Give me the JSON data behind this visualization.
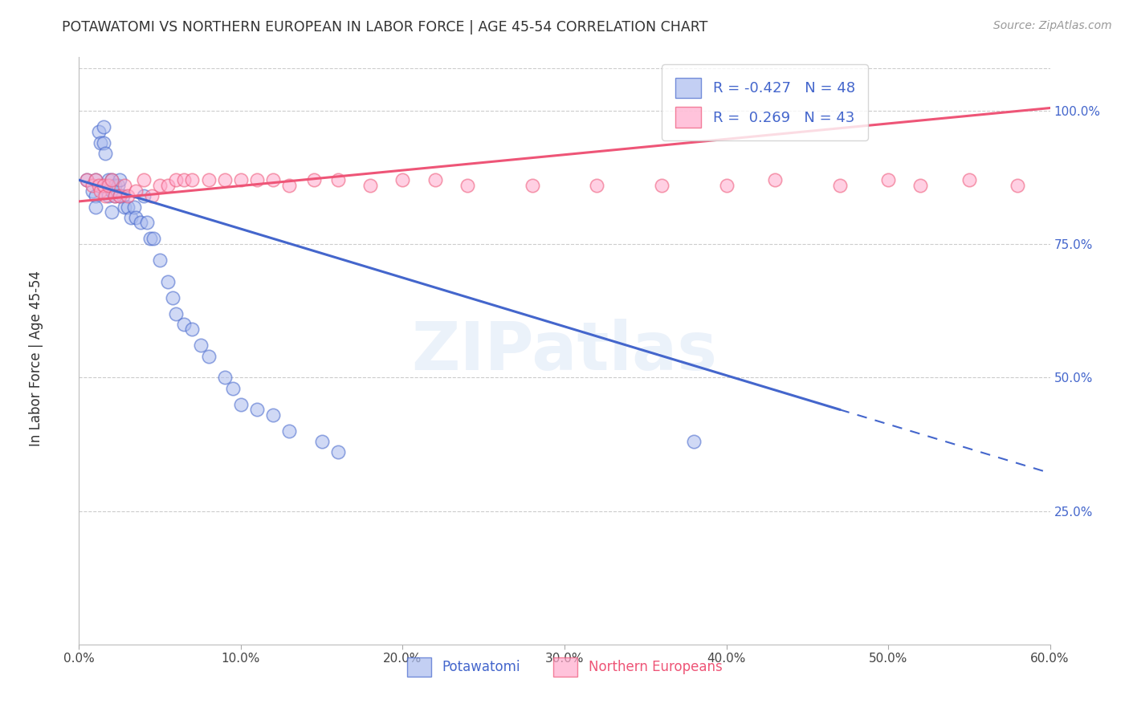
{
  "title": "POTAWATOMI VS NORTHERN EUROPEAN IN LABOR FORCE | AGE 45-54 CORRELATION CHART",
  "source": "Source: ZipAtlas.com",
  "ylabel": "In Labor Force | Age 45-54",
  "xlim": [
    0.0,
    0.6
  ],
  "ylim": [
    0.0,
    1.1
  ],
  "xticks": [
    0.0,
    0.1,
    0.2,
    0.3,
    0.4,
    0.5,
    0.6
  ],
  "xticklabels": [
    "0.0%",
    "10.0%",
    "20.0%",
    "30.0%",
    "40.0%",
    "50.0%",
    "60.0%"
  ],
  "yticks": [
    0.25,
    0.5,
    0.75,
    1.0
  ],
  "yticklabels": [
    "25.0%",
    "50.0%",
    "75.0%",
    "100.0%"
  ],
  "blue_fill": "#aabbee",
  "blue_edge": "#4466CC",
  "pink_fill": "#ffaacc",
  "pink_edge": "#ee5577",
  "blue_line": "#4466CC",
  "pink_line": "#ee5577",
  "blue_label": "Potawatomi",
  "pink_label": "Northern Europeans",
  "blue_r": "-0.427",
  "blue_n": "48",
  "pink_r": "0.269",
  "pink_n": "43",
  "watermark": "ZIPatlas",
  "blue_scatter_x": [
    0.005,
    0.008,
    0.01,
    0.01,
    0.01,
    0.012,
    0.013,
    0.015,
    0.015,
    0.016,
    0.018,
    0.018,
    0.02,
    0.02,
    0.02,
    0.022,
    0.022,
    0.024,
    0.025,
    0.025,
    0.027,
    0.028,
    0.03,
    0.032,
    0.034,
    0.035,
    0.038,
    0.04,
    0.042,
    0.044,
    0.046,
    0.05,
    0.055,
    0.058,
    0.06,
    0.065,
    0.07,
    0.075,
    0.08,
    0.09,
    0.095,
    0.1,
    0.11,
    0.12,
    0.13,
    0.15,
    0.16,
    0.38
  ],
  "blue_scatter_y": [
    0.87,
    0.85,
    0.87,
    0.84,
    0.82,
    0.96,
    0.94,
    0.97,
    0.94,
    0.92,
    0.87,
    0.84,
    0.87,
    0.85,
    0.81,
    0.86,
    0.84,
    0.86,
    0.87,
    0.84,
    0.84,
    0.82,
    0.82,
    0.8,
    0.82,
    0.8,
    0.79,
    0.84,
    0.79,
    0.76,
    0.76,
    0.72,
    0.68,
    0.65,
    0.62,
    0.6,
    0.59,
    0.56,
    0.54,
    0.5,
    0.48,
    0.45,
    0.44,
    0.43,
    0.4,
    0.38,
    0.36,
    0.38
  ],
  "pink_scatter_x": [
    0.005,
    0.008,
    0.01,
    0.012,
    0.013,
    0.015,
    0.016,
    0.018,
    0.02,
    0.022,
    0.025,
    0.028,
    0.03,
    0.035,
    0.04,
    0.045,
    0.05,
    0.055,
    0.06,
    0.065,
    0.07,
    0.08,
    0.09,
    0.1,
    0.11,
    0.12,
    0.13,
    0.145,
    0.16,
    0.18,
    0.2,
    0.22,
    0.24,
    0.28,
    0.32,
    0.36,
    0.4,
    0.43,
    0.47,
    0.5,
    0.52,
    0.55,
    0.58
  ],
  "pink_scatter_y": [
    0.87,
    0.86,
    0.87,
    0.86,
    0.85,
    0.86,
    0.84,
    0.86,
    0.87,
    0.84,
    0.84,
    0.86,
    0.84,
    0.85,
    0.87,
    0.84,
    0.86,
    0.86,
    0.87,
    0.87,
    0.87,
    0.87,
    0.87,
    0.87,
    0.87,
    0.87,
    0.86,
    0.87,
    0.87,
    0.86,
    0.87,
    0.87,
    0.86,
    0.86,
    0.86,
    0.86,
    0.86,
    0.87,
    0.86,
    0.87,
    0.86,
    0.87,
    0.86
  ],
  "background_color": "#ffffff",
  "grid_color": "#cccccc"
}
